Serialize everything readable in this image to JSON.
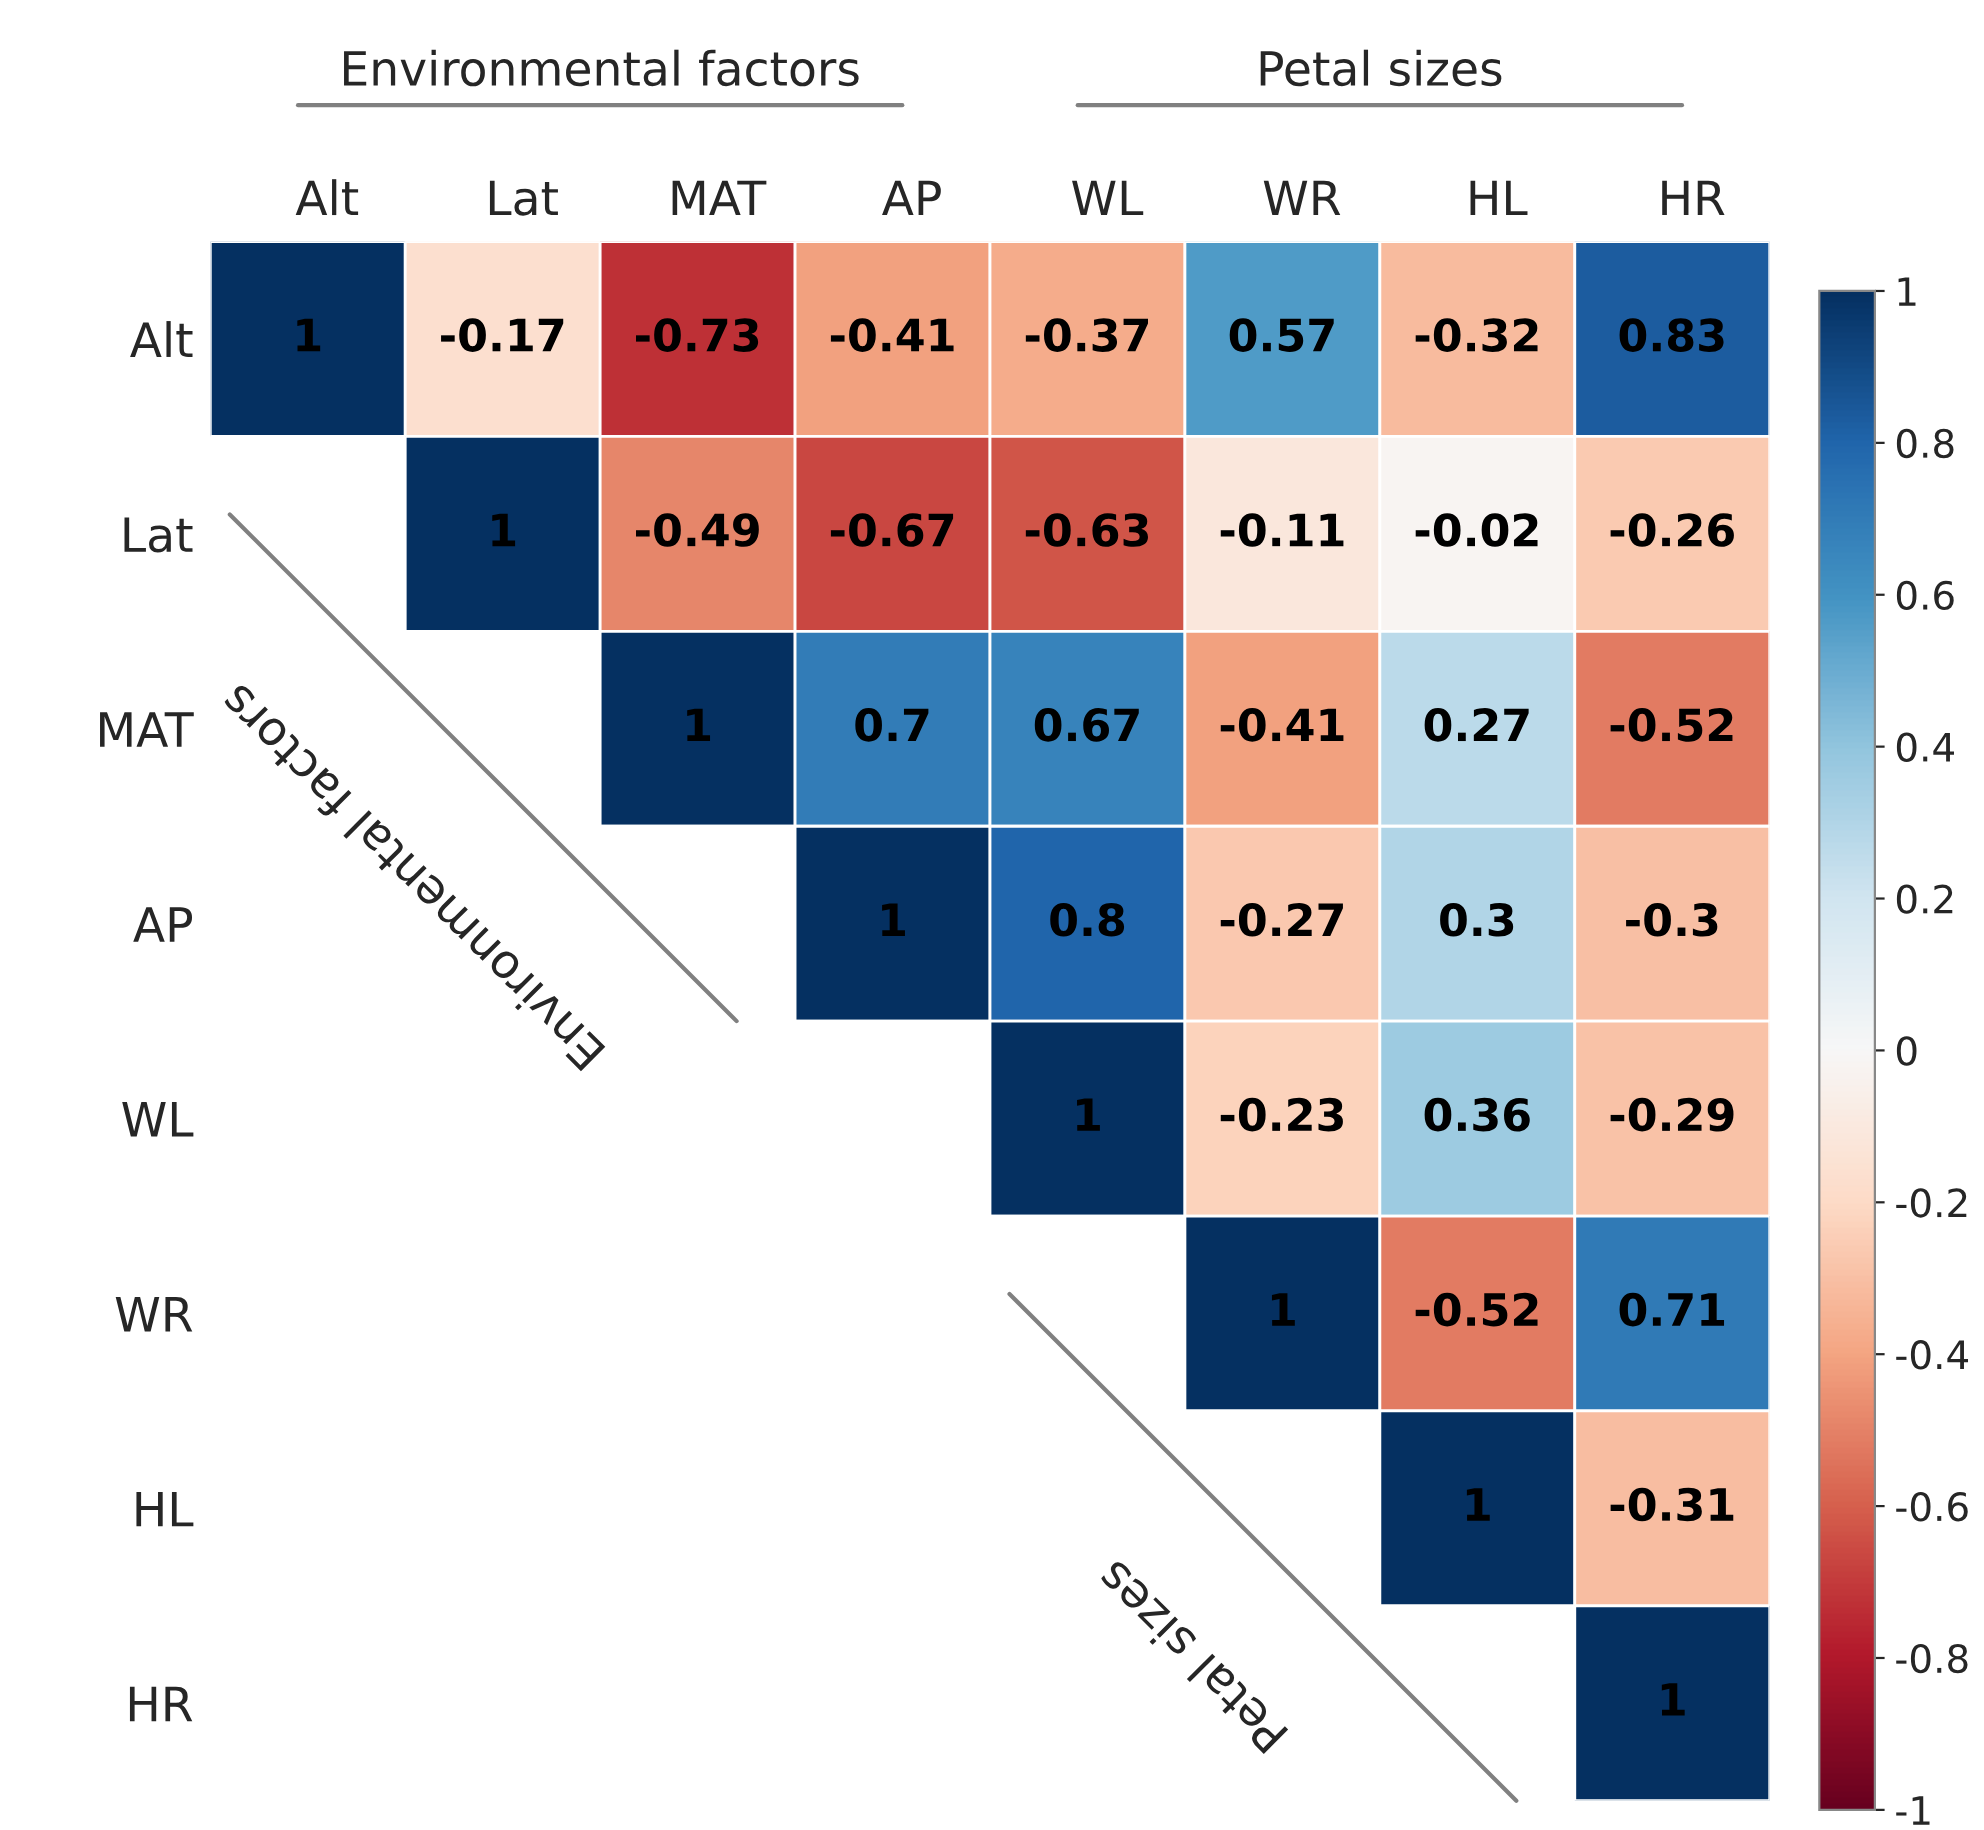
{
  "chart_data": {
    "type": "heatmap",
    "categories": [
      "Alt",
      "Lat",
      "MAT",
      "AP",
      "WL",
      "WR",
      "HL",
      "HR"
    ],
    "y_categories": [
      "Alt",
      "Lat",
      "MAT",
      "AP",
      "WL",
      "WR",
      "HL",
      "HR"
    ],
    "cells": [
      [
        1,
        -0.17,
        -0.73,
        -0.41,
        -0.37,
        0.57,
        -0.32,
        0.83
      ],
      [
        null,
        1,
        -0.49,
        -0.67,
        -0.63,
        -0.11,
        -0.02,
        -0.26
      ],
      [
        null,
        null,
        1,
        0.7,
        0.67,
        -0.41,
        0.27,
        -0.52
      ],
      [
        null,
        null,
        null,
        1,
        0.8,
        -0.27,
        0.3,
        -0.3
      ],
      [
        null,
        null,
        null,
        null,
        1,
        -0.23,
        0.36,
        -0.29
      ],
      [
        null,
        null,
        null,
        null,
        null,
        1,
        -0.52,
        0.71
      ],
      [
        null,
        null,
        null,
        null,
        null,
        null,
        1,
        -0.31
      ],
      [
        null,
        null,
        null,
        null,
        null,
        null,
        null,
        1
      ]
    ],
    "data_labels": true,
    "clim": [
      -1,
      1
    ],
    "cticks": [
      -1,
      -0.8,
      -0.6,
      -0.4,
      -0.2,
      0,
      0.2,
      0.4,
      0.6,
      0.8,
      1
    ],
    "annotations": [
      "Environmental factors",
      "Petal sizes",
      "Environmental factors",
      "Petal sizes"
    ]
  }
}
